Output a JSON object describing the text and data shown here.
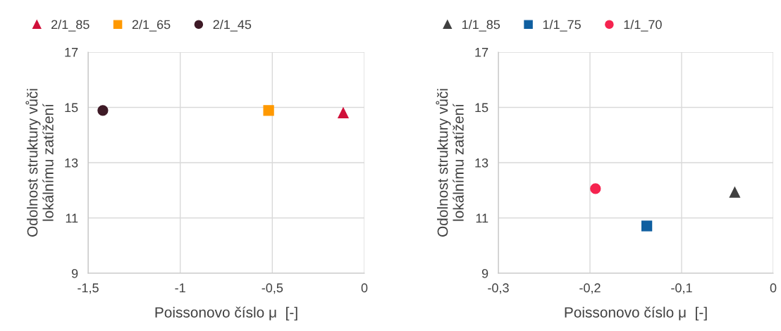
{
  "chart_data": [
    {
      "type": "scatter",
      "xlabel": "Poissonovo číslo μ  [-]",
      "ylabel": "Odolnost struktury vůči\nlokálnímu zatížení",
      "grid": true,
      "legend": "top left",
      "xlim": [
        -1.5,
        0
      ],
      "xticks": [
        {
          "value": -1.5,
          "label": "-1,5"
        },
        {
          "value": -1,
          "label": "-1"
        },
        {
          "value": -0.5,
          "label": "-0,5"
        },
        0
      ],
      "ylim": [
        9,
        17
      ],
      "yticks": [
        9,
        11,
        13,
        15,
        17
      ],
      "series": [
        {
          "name": "2/1_85",
          "color": "#d0103a",
          "marker": "triangle",
          "x": [
            -0.115
          ],
          "values": [
            14.8
          ]
        },
        {
          "name": "2/1_65",
          "color": "#ff9900",
          "marker": "square",
          "x": [
            -0.52
          ],
          "values": [
            14.89
          ]
        },
        {
          "name": "2/1_45",
          "color": "#3e1a26",
          "marker": "circle",
          "x": [
            -1.42
          ],
          "values": [
            14.89
          ]
        }
      ]
    },
    {
      "type": "scatter",
      "xlabel": "Poissonovo číslo μ  [-]",
      "ylabel": "Odolnost struktury vůči\nlokálnímu zatížení",
      "grid": true,
      "legend": "top left",
      "xlim": [
        -0.3,
        0
      ],
      "xticks": [
        {
          "value": -0.3,
          "label": "-0,3"
        },
        {
          "value": -0.2,
          "label": "-0,2"
        },
        {
          "value": -0.1,
          "label": "-0,1"
        },
        0
      ],
      "ylim": [
        9,
        17
      ],
      "yticks": [
        9,
        11,
        13,
        15,
        17
      ],
      "series": [
        {
          "name": "1/1_85",
          "color": "#404040",
          "marker": "triangle",
          "x": [
            -0.042
          ],
          "values": [
            11.93
          ]
        },
        {
          "name": "1/1_75",
          "color": "#0f5fa0",
          "marker": "square",
          "x": [
            -0.138
          ],
          "values": [
            10.71
          ]
        },
        {
          "name": "1/1_70",
          "color": "#f5234f",
          "marker": "circle",
          "x": [
            -0.194
          ],
          "values": [
            12.06
          ]
        }
      ]
    }
  ]
}
